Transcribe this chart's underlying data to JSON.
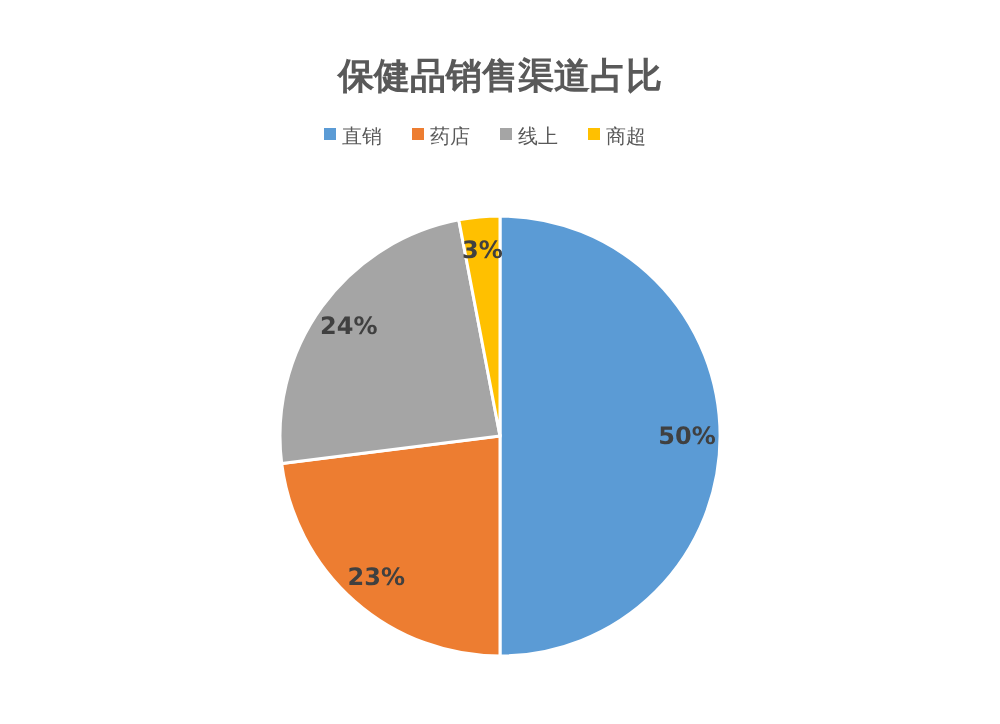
{
  "chart_data": {
    "type": "pie",
    "title": "保健品销售渠道占比",
    "categories": [
      "直销",
      "药店",
      "线上",
      "商超"
    ],
    "values": [
      50,
      23,
      24,
      3
    ],
    "colors": [
      "#5b9bd5",
      "#ed7d31",
      "#a5a5a5",
      "#ffc000"
    ],
    "legend": "top",
    "value_labels": [
      "50%",
      "23%",
      "24%",
      "3%"
    ]
  }
}
